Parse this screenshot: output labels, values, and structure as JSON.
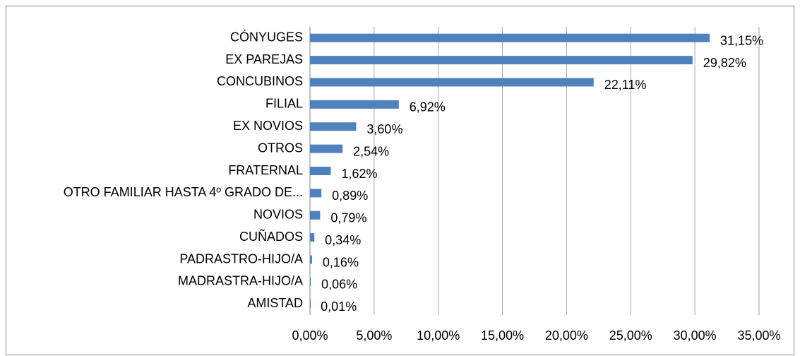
{
  "chart_data": {
    "type": "barh",
    "categories": [
      "CÓNYUGES",
      "EX PAREJAS",
      "CONCUBINOS",
      "FILIAL",
      "EX NOVIOS",
      "OTROS",
      "FRATERNAL",
      "OTRO FAMILIAR HASTA 4º GRADO DE...",
      "NOVIOS",
      "CUÑADOS",
      "PADRASTRO-HIJO/A",
      "MADRASTRA-HIJO/A",
      "AMISTAD"
    ],
    "values": [
      31.15,
      29.82,
      22.11,
      6.92,
      3.6,
      2.54,
      1.62,
      0.89,
      0.79,
      0.34,
      0.16,
      0.06,
      0.01
    ],
    "value_labels": [
      "31,15%",
      "29,82%",
      "22,11%",
      "6,92%",
      "3,60%",
      "2,54%",
      "1,62%",
      "0,89%",
      "0,79%",
      "0,34%",
      "0,16%",
      "0,06%",
      "0,01%"
    ],
    "color": "#4f81bd",
    "xlim": [
      0,
      35
    ],
    "xticks": [
      {
        "value": 0,
        "label": "0,00%"
      },
      {
        "value": 5,
        "label": "5,00%"
      },
      {
        "value": 10,
        "label": "10,00%"
      },
      {
        "value": 15,
        "label": "15,00%"
      },
      {
        "value": 20,
        "label": "20,00%"
      },
      {
        "value": 25,
        "label": "25,00%"
      },
      {
        "value": 30,
        "label": "30,00%"
      },
      {
        "value": 35,
        "label": "35,00%"
      }
    ],
    "grid": true
  }
}
